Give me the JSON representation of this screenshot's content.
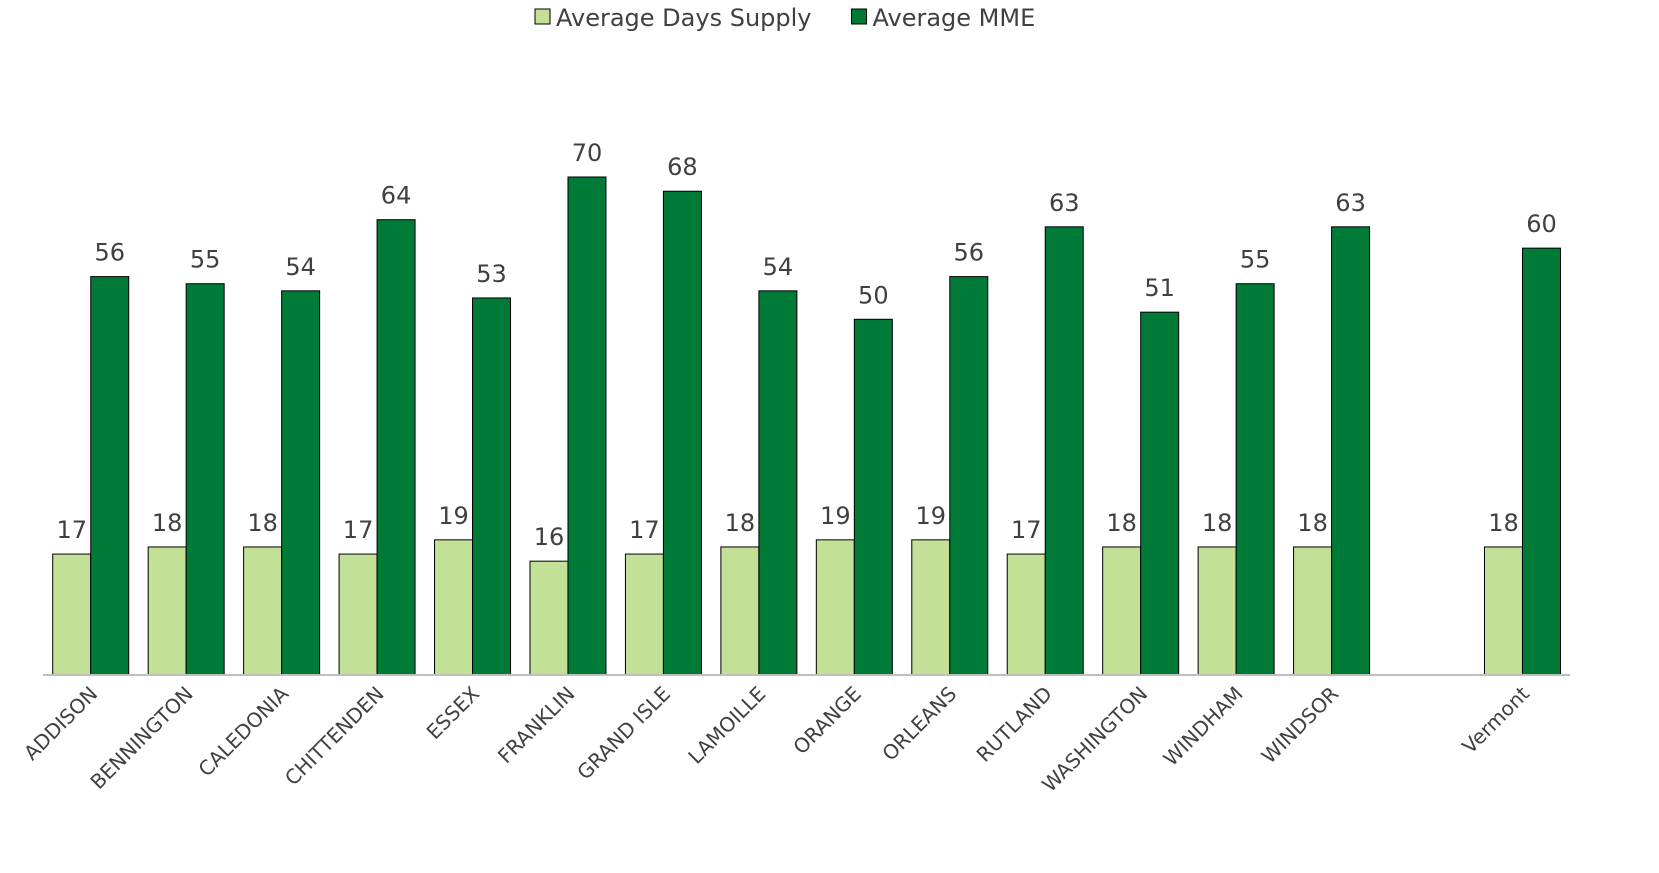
{
  "chart_data": {
    "type": "bar",
    "categories": [
      "ADDISON",
      "BENNINGTON",
      "CALEDONIA",
      "CHITTENDEN",
      "ESSEX",
      "FRANKLIN",
      "GRAND ISLE",
      "LAMOILLE",
      "ORANGE",
      "ORLEANS",
      "RUTLAND",
      "WASHINGTON",
      "WINDHAM",
      "WINDSOR",
      null,
      "Vermont"
    ],
    "series": [
      {
        "name": "Average Days Supply",
        "color": "#c2e096",
        "values": [
          17,
          18,
          18,
          17,
          19,
          16,
          17,
          18,
          19,
          19,
          17,
          18,
          18,
          18,
          null,
          18
        ]
      },
      {
        "name": "Average MME",
        "color": "#007a37",
        "values": [
          56,
          55,
          54,
          64,
          53,
          70,
          68,
          54,
          50,
          56,
          63,
          51,
          55,
          63,
          null,
          60
        ]
      }
    ],
    "legend": "top"
  }
}
